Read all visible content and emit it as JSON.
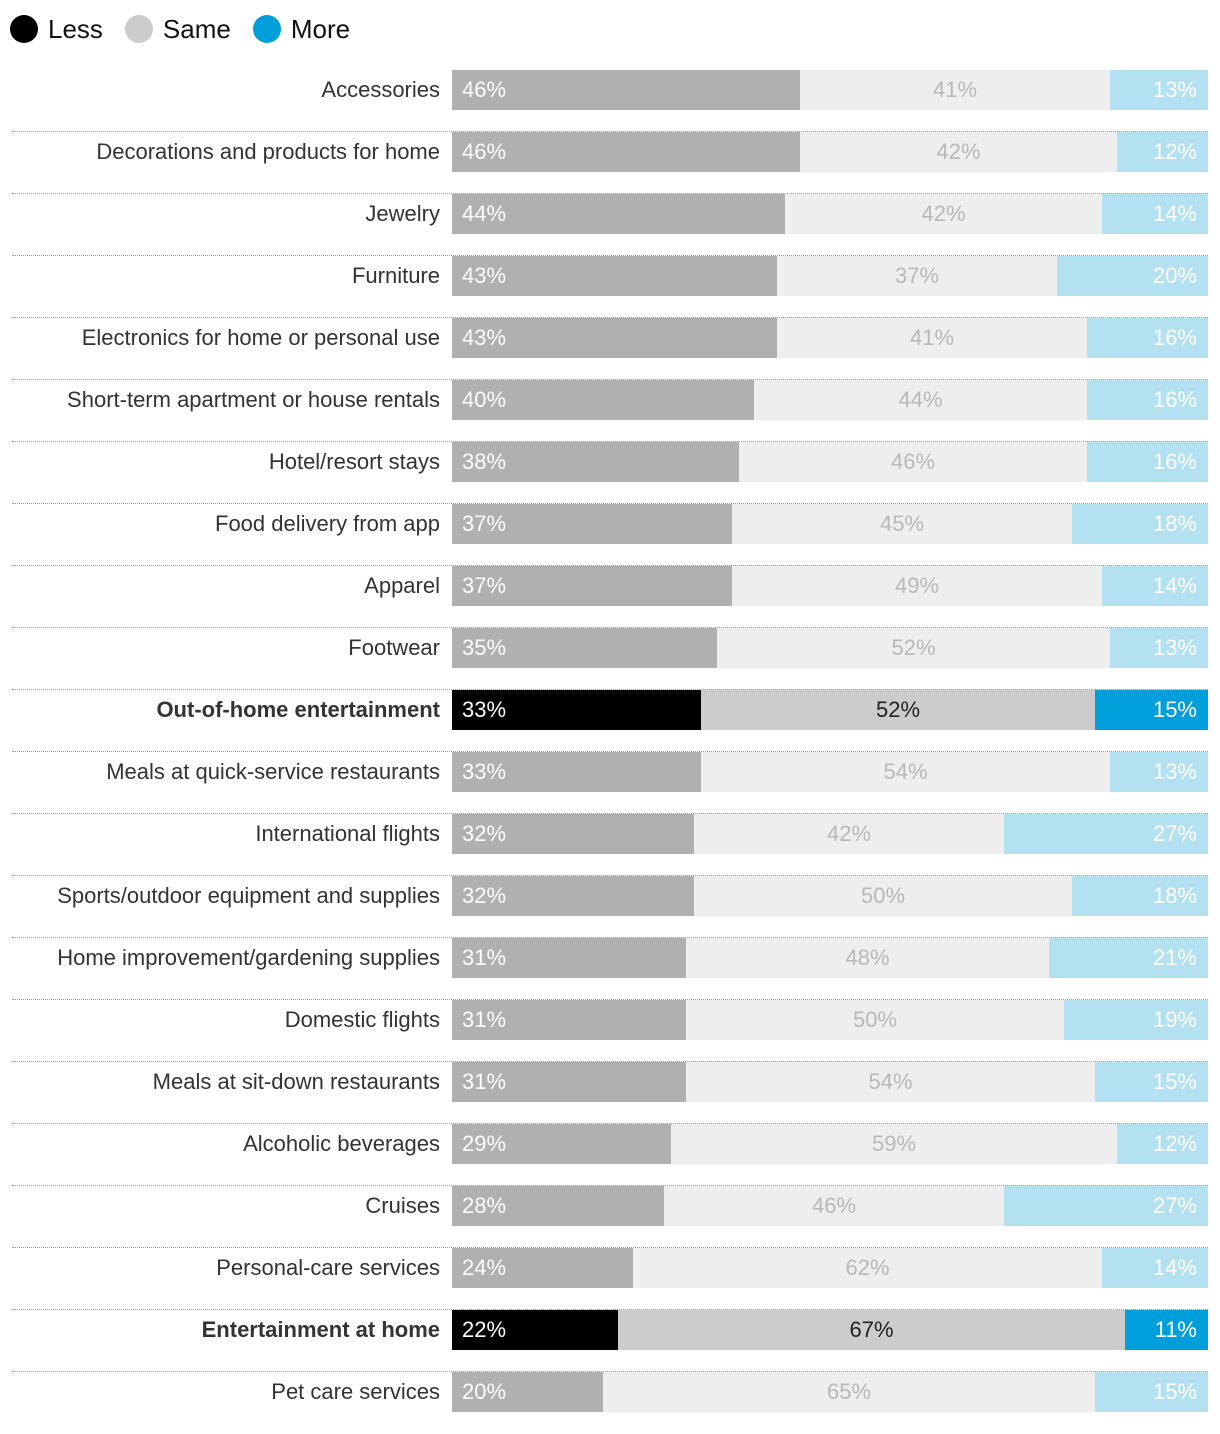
{
  "chart_data": {
    "type": "bar",
    "orientation": "horizontal",
    "stacked": true,
    "legend": [
      {
        "name": "Less",
        "color": "#000000"
      },
      {
        "name": "Same",
        "color": "#cccccc"
      },
      {
        "name": "More",
        "color": "#009fdb"
      }
    ],
    "colors": {
      "less": "#b0b0b0",
      "same": "#eeeeee",
      "more": "#b3e1f2",
      "less_highlight": "#000000",
      "same_highlight": "#cccccc",
      "more_highlight": "#009fdb",
      "less_text": "#ffffff",
      "same_text": "#b8b8b8",
      "more_text": "#ffffff",
      "same_text_highlight": "#222222"
    },
    "categories": [
      "Accessories",
      "Decorations and products for home",
      "Jewelry",
      "Furniture",
      "Electronics for home or personal use",
      "Short-term apartment or house rentals",
      "Hotel/resort stays",
      "Food delivery from app",
      "Apparel",
      "Footwear",
      "Out-of-home entertainment",
      "Meals at quick-service restaurants",
      "International flights",
      "Sports/outdoor equipment and supplies",
      "Home improvement/gardening supplies",
      "Domestic flights",
      "Meals at sit-down restaurants",
      "Alcoholic beverages",
      "Cruises",
      "Personal-care services",
      "Entertainment at home",
      "Pet care services"
    ],
    "highlighted": [
      "Out-of-home entertainment",
      "Entertainment at home"
    ],
    "series": [
      {
        "name": "Less",
        "values": [
          46,
          46,
          44,
          43,
          43,
          40,
          38,
          37,
          37,
          35,
          33,
          33,
          32,
          32,
          31,
          31,
          31,
          29,
          28,
          24,
          22,
          20
        ]
      },
      {
        "name": "Same",
        "values": [
          41,
          42,
          42,
          37,
          41,
          44,
          46,
          45,
          49,
          52,
          52,
          54,
          42,
          50,
          48,
          50,
          54,
          59,
          46,
          62,
          67,
          65
        ]
      },
      {
        "name": "More",
        "values": [
          13,
          12,
          14,
          20,
          16,
          16,
          16,
          18,
          14,
          13,
          15,
          13,
          27,
          18,
          21,
          19,
          15,
          12,
          27,
          14,
          11,
          15
        ]
      }
    ],
    "value_suffix": "%",
    "xlim": [
      0,
      100
    ]
  }
}
